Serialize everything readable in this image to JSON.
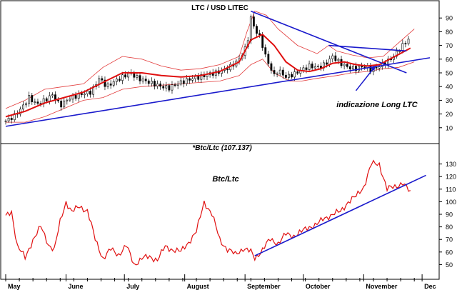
{
  "chart_data": [
    {
      "type": "candlestick",
      "title": "LTC / USD LITEC",
      "annotation": "indicazione Long LTC",
      "ylim": [
        0,
        100
      ],
      "yticks": [
        10,
        20,
        30,
        40,
        50,
        60,
        70,
        80,
        90
      ],
      "xlim": [
        0,
        218
      ],
      "months": [
        {
          "label": "May",
          "day": 0
        },
        {
          "label": "June",
          "day": 31
        },
        {
          "label": "July",
          "day": 61
        },
        {
          "label": "August",
          "day": 92
        },
        {
          "label": "September",
          "day": 123
        },
        {
          "label": "October",
          "day": 153
        },
        {
          "label": "November",
          "day": 184
        },
        {
          "label": "Dec",
          "day": 214
        }
      ],
      "close_series": {
        "name": "",
        "days": [
          0,
          4,
          8,
          12,
          16,
          20,
          24,
          28,
          32,
          36,
          40,
          44,
          48,
          52,
          56,
          60,
          64,
          68,
          72,
          76,
          80,
          84,
          88,
          92,
          96,
          100,
          104,
          108,
          112,
          116,
          120,
          124,
          126,
          128,
          131,
          134,
          138,
          140,
          144,
          148,
          152,
          156,
          160,
          164,
          168,
          172,
          176,
          180,
          184,
          188,
          192,
          196,
          200,
          204,
          208
        ],
        "values": [
          15,
          18,
          24,
          32,
          27,
          30,
          34,
          26,
          31,
          33,
          35,
          36,
          46,
          40,
          44,
          47,
          50,
          46,
          44,
          42,
          40,
          39,
          42,
          44,
          46,
          47,
          49,
          50,
          52,
          55,
          60,
          70,
          90,
          82,
          75,
          60,
          48,
          52,
          47,
          49,
          52,
          55,
          54,
          56,
          62,
          57,
          54,
          53,
          55,
          52,
          55,
          58,
          63,
          70,
          76
        ]
      },
      "moving_average": {
        "name": "",
        "days": [
          0,
          10,
          20,
          30,
          40,
          50,
          60,
          70,
          80,
          90,
          100,
          110,
          120,
          126,
          132,
          138,
          144,
          150,
          156,
          162,
          168,
          174,
          180,
          186,
          192,
          200,
          208
        ],
        "values": [
          18,
          22,
          28,
          32,
          36,
          43,
          50,
          50,
          48,
          47,
          48,
          51,
          58,
          74,
          78,
          70,
          58,
          52,
          51,
          53,
          57,
          58,
          56,
          55,
          56,
          62,
          68
        ]
      },
      "upper_band": {
        "days": [
          0,
          10,
          20,
          30,
          40,
          50,
          60,
          70,
          80,
          90,
          100,
          110,
          120,
          124,
          128,
          134,
          140,
          150,
          160,
          166,
          170,
          178,
          186,
          194,
          202,
          210
        ],
        "values": [
          24,
          30,
          38,
          40,
          42,
          54,
          62,
          60,
          55,
          52,
          53,
          56,
          62,
          80,
          95,
          92,
          82,
          70,
          64,
          70,
          66,
          63,
          61,
          62,
          72,
          82
        ]
      },
      "lower_band": {
        "days": [
          0,
          10,
          20,
          30,
          40,
          50,
          60,
          70,
          80,
          90,
          100,
          110,
          120,
          126,
          132,
          138,
          146,
          152,
          160,
          170,
          178,
          186,
          194,
          202,
          210
        ],
        "values": [
          14,
          14,
          18,
          24,
          30,
          32,
          38,
          40,
          41,
          42,
          43,
          44,
          48,
          56,
          60,
          50,
          44,
          44,
          46,
          48,
          50,
          51,
          53,
          54,
          58
        ]
      },
      "trendlines": [
        {
          "from": [
            0,
            11
          ],
          "to": [
            218,
            61
          ]
        },
        {
          "from": [
            126,
            95
          ],
          "to": [
            206,
            50
          ]
        },
        {
          "from": [
            166,
            70
          ],
          "to": [
            206,
            66
          ]
        }
      ],
      "arrow": {
        "from": [
          180,
          37
        ],
        "to": [
          190,
          55
        ]
      }
    },
    {
      "type": "line",
      "title": "*Btc/Ltc (107.137)",
      "series_label": "Btc/Ltc",
      "ylim": [
        40,
        140
      ],
      "yticks": [
        50,
        60,
        70,
        80,
        90,
        100,
        110,
        120,
        130
      ],
      "series": [
        {
          "name": "Btc/Ltc",
          "days": [
            0,
            3,
            6,
            10,
            14,
            18,
            22,
            25,
            28,
            31,
            34,
            38,
            42,
            46,
            50,
            54,
            58,
            62,
            66,
            70,
            74,
            78,
            82,
            86,
            90,
            94,
            98,
            102,
            106,
            110,
            114,
            118,
            122,
            126,
            128,
            132,
            136,
            140,
            144,
            148,
            152,
            156,
            160,
            164,
            168,
            172,
            176,
            180,
            184,
            188,
            192,
            196,
            200,
            204,
            208
          ],
          "values": [
            88,
            92,
            65,
            55,
            70,
            80,
            66,
            62,
            84,
            100,
            92,
            96,
            93,
            70,
            55,
            62,
            58,
            65,
            50,
            55,
            56,
            54,
            64,
            62,
            60,
            68,
            76,
            100,
            90,
            70,
            62,
            58,
            63,
            60,
            55,
            62,
            70,
            67,
            74,
            73,
            76,
            80,
            82,
            87,
            90,
            92,
            100,
            104,
            112,
            130,
            130,
            110,
            112,
            115,
            107
          ]
        }
      ],
      "trendlines": [
        {
          "from": [
            128,
            57
          ],
          "to": [
            216,
            121
          ]
        }
      ]
    }
  ]
}
